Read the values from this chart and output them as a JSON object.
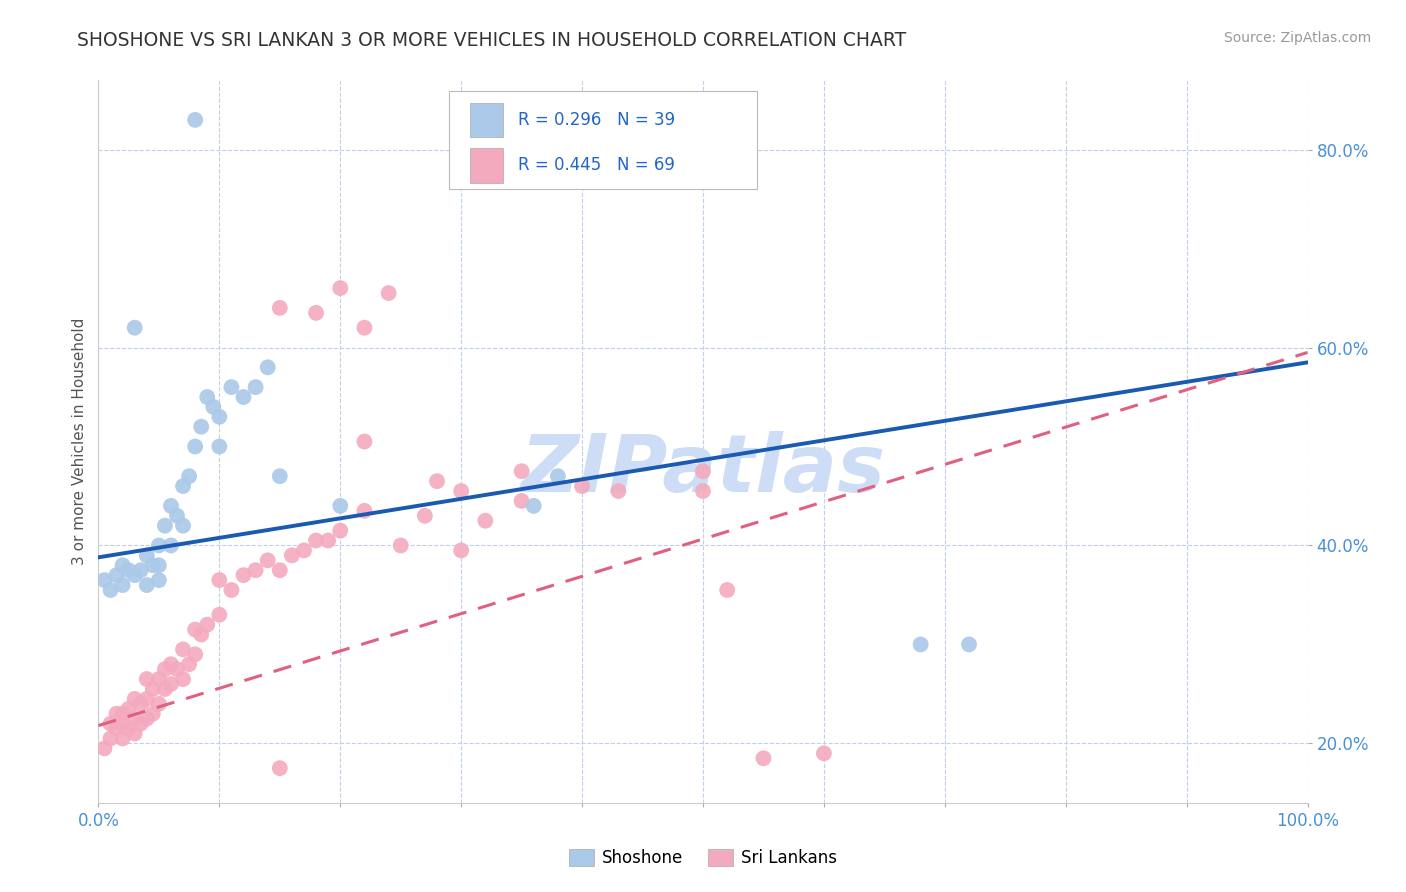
{
  "title": "SHOSHONE VS SRI LANKAN 3 OR MORE VEHICLES IN HOUSEHOLD CORRELATION CHART",
  "source_text": "Source: ZipAtlas.com",
  "ylabel": "3 or more Vehicles in Household",
  "xlim": [
    0.0,
    1.0
  ],
  "ylim": [
    0.14,
    0.87
  ],
  "xticks": [
    0.0,
    0.1,
    0.2,
    0.3,
    0.4,
    0.5,
    0.6,
    0.7,
    0.8,
    0.9,
    1.0
  ],
  "xticklabels": [
    "0.0%",
    "",
    "",
    "",
    "",
    "",
    "",
    "",
    "",
    "",
    "100.0%"
  ],
  "yticks": [
    0.2,
    0.4,
    0.6,
    0.8
  ],
  "yticklabels": [
    "20.0%",
    "40.0%",
    "60.0%",
    "80.0%"
  ],
  "legend_r1": "R = 0.296",
  "legend_n1": "N = 39",
  "legend_r2": "R = 0.445",
  "legend_n2": "N = 69",
  "shoshone_color": "#aac8e8",
  "sri_lankan_color": "#f4aabe",
  "shoshone_line_color": "#1a5ab0",
  "sri_lankan_line_color": "#e06080",
  "watermark": "ZIPatlas",
  "watermark_color": "#ccddf5",
  "shoshone_line_x0": 0.0,
  "shoshone_line_y0": 0.388,
  "shoshone_line_x1": 1.0,
  "shoshone_line_y1": 0.585,
  "sri_lankan_line_x0": 0.0,
  "sri_lankan_line_y0": 0.218,
  "sri_lankan_line_x1": 1.0,
  "sri_lankan_line_y1": 0.595,
  "shoshone_x": [
    0.005,
    0.01,
    0.015,
    0.02,
    0.02,
    0.025,
    0.03,
    0.035,
    0.04,
    0.04,
    0.045,
    0.05,
    0.05,
    0.05,
    0.055,
    0.06,
    0.06,
    0.065,
    0.07,
    0.07,
    0.075,
    0.08,
    0.085,
    0.09,
    0.095,
    0.1,
    0.1,
    0.11,
    0.12,
    0.13,
    0.14,
    0.15,
    0.2,
    0.36,
    0.38,
    0.68,
    0.72,
    0.03,
    0.08
  ],
  "shoshone_y": [
    0.365,
    0.355,
    0.37,
    0.36,
    0.38,
    0.375,
    0.37,
    0.375,
    0.36,
    0.39,
    0.38,
    0.365,
    0.38,
    0.4,
    0.42,
    0.4,
    0.44,
    0.43,
    0.42,
    0.46,
    0.47,
    0.5,
    0.52,
    0.55,
    0.54,
    0.5,
    0.53,
    0.56,
    0.55,
    0.56,
    0.58,
    0.47,
    0.44,
    0.44,
    0.47,
    0.3,
    0.3,
    0.62,
    0.83
  ],
  "sri_lankan_x": [
    0.005,
    0.01,
    0.01,
    0.015,
    0.015,
    0.02,
    0.02,
    0.02,
    0.025,
    0.025,
    0.03,
    0.03,
    0.03,
    0.035,
    0.035,
    0.04,
    0.04,
    0.04,
    0.045,
    0.045,
    0.05,
    0.05,
    0.055,
    0.055,
    0.06,
    0.06,
    0.065,
    0.07,
    0.07,
    0.075,
    0.08,
    0.08,
    0.085,
    0.09,
    0.1,
    0.1,
    0.11,
    0.12,
    0.13,
    0.14,
    0.15,
    0.16,
    0.17,
    0.18,
    0.19,
    0.2,
    0.22,
    0.25,
    0.27,
    0.3,
    0.32,
    0.35,
    0.4,
    0.43,
    0.5,
    0.52,
    0.22,
    0.15,
    0.2,
    0.18,
    0.24,
    0.22,
    0.28,
    0.3,
    0.35,
    0.5,
    0.55,
    0.6,
    0.15
  ],
  "sri_lankan_y": [
    0.195,
    0.205,
    0.22,
    0.215,
    0.23,
    0.205,
    0.22,
    0.23,
    0.215,
    0.235,
    0.21,
    0.225,
    0.245,
    0.22,
    0.24,
    0.225,
    0.245,
    0.265,
    0.23,
    0.255,
    0.24,
    0.265,
    0.255,
    0.275,
    0.26,
    0.28,
    0.275,
    0.265,
    0.295,
    0.28,
    0.29,
    0.315,
    0.31,
    0.32,
    0.33,
    0.365,
    0.355,
    0.37,
    0.375,
    0.385,
    0.375,
    0.39,
    0.395,
    0.405,
    0.405,
    0.415,
    0.435,
    0.4,
    0.43,
    0.395,
    0.425,
    0.445,
    0.46,
    0.455,
    0.455,
    0.355,
    0.62,
    0.64,
    0.66,
    0.635,
    0.655,
    0.505,
    0.465,
    0.455,
    0.475,
    0.475,
    0.185,
    0.19,
    0.175
  ]
}
